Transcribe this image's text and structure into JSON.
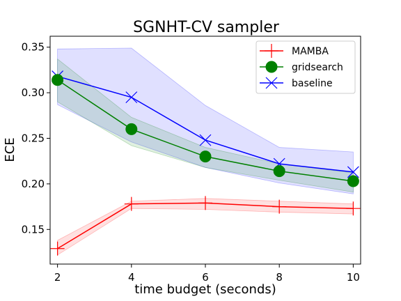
{
  "chart_data": {
    "type": "line",
    "title": "SGNHT-CV sampler",
    "xlabel": "time budget (seconds)",
    "ylabel": "ECE",
    "x": [
      2,
      4,
      6,
      8,
      10
    ],
    "xticks": [
      "2",
      "4",
      "6",
      "8",
      "10"
    ],
    "yticks": [
      "0.15",
      "0.20",
      "0.25",
      "0.30",
      "0.35"
    ],
    "ytick_values": [
      0.15,
      0.2,
      0.25,
      0.3,
      0.35
    ],
    "xlim": [
      1.8,
      10.2
    ],
    "ylim": [
      0.112,
      0.362
    ],
    "grid": false,
    "legend_position": "top-right",
    "series": [
      {
        "name": "MAMBA",
        "marker": "plus",
        "color": "#ff0000",
        "values": [
          0.129,
          0.178,
          0.179,
          0.175,
          0.173
        ],
        "band_low": [
          0.122,
          0.173,
          0.172,
          0.169,
          0.167
        ],
        "band_high": [
          0.138,
          0.181,
          0.184,
          0.181,
          0.178
        ]
      },
      {
        "name": "gridsearch",
        "marker": "circle",
        "color": "#008000",
        "values": [
          0.314,
          0.26,
          0.23,
          0.214,
          0.203
        ],
        "band_low": [
          0.29,
          0.242,
          0.218,
          0.204,
          0.191
        ],
        "band_high": [
          0.337,
          0.273,
          0.24,
          0.222,
          0.212
        ]
      },
      {
        "name": "baseline",
        "marker": "x",
        "color": "#0000ff",
        "values": [
          0.318,
          0.295,
          0.248,
          0.222,
          0.213
        ],
        "band_low": [
          0.287,
          0.246,
          0.218,
          0.201,
          0.189
        ],
        "band_high": [
          0.348,
          0.349,
          0.286,
          0.24,
          0.235
        ]
      }
    ]
  }
}
